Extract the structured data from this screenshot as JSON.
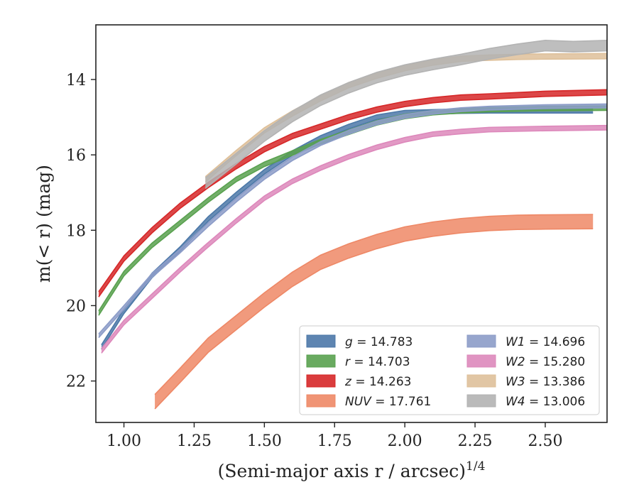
{
  "chart_data": {
    "type": "line",
    "xlabel": "(Semi-major axis r / arcsec)",
    "xlabel_exponent": "1/4",
    "ylabel": "m(< r) (mag)",
    "xlim": [
      0.9,
      2.72
    ],
    "ylim": [
      23.1,
      12.55
    ],
    "y_inverted": true,
    "xticks": [
      1.0,
      1.25,
      1.5,
      1.75,
      2.0,
      2.25,
      2.5
    ],
    "xtick_labels": [
      "1.00",
      "1.25",
      "1.50",
      "1.75",
      "2.00",
      "2.25",
      "2.50"
    ],
    "yticks": [
      14,
      16,
      18,
      20,
      22
    ],
    "ytick_labels": [
      "14",
      "16",
      "18",
      "20",
      "22"
    ],
    "grid": false,
    "legend_position": "lower-right",
    "legend_columns": 2,
    "series": [
      {
        "name": "g",
        "label_value": "14.783",
        "color": "#4c78a8",
        "band_width": 0.12,
        "x": [
          0.92,
          1.0,
          1.1,
          1.2,
          1.3,
          1.4,
          1.5,
          1.6,
          1.7,
          1.8,
          1.9,
          2.0,
          2.1,
          2.2,
          2.3,
          2.5,
          2.67
        ],
        "y": [
          21.1,
          20.15,
          19.2,
          18.5,
          17.7,
          17.05,
          16.45,
          15.95,
          15.55,
          15.25,
          15.0,
          14.88,
          14.86,
          14.84,
          14.83,
          14.83,
          14.83
        ]
      },
      {
        "name": "r",
        "label_value": "14.703",
        "color": "#59a14f",
        "band_width": 0.12,
        "x": [
          0.91,
          1.0,
          1.1,
          1.2,
          1.3,
          1.4,
          1.5,
          1.6,
          1.7,
          1.8,
          1.9,
          2.0,
          2.1,
          2.2,
          2.3,
          2.5,
          2.72
        ],
        "y": [
          20.2,
          19.15,
          18.4,
          17.8,
          17.2,
          16.65,
          16.25,
          15.95,
          15.65,
          15.4,
          15.15,
          14.98,
          14.88,
          14.83,
          14.8,
          14.77,
          14.76
        ]
      },
      {
        "name": "z",
        "label_value": "14.263",
        "color": "#d62728",
        "band_width": 0.14,
        "x": [
          0.91,
          1.0,
          1.1,
          1.2,
          1.3,
          1.4,
          1.5,
          1.6,
          1.7,
          1.8,
          1.9,
          2.0,
          2.1,
          2.2,
          2.3,
          2.5,
          2.72
        ],
        "y": [
          19.7,
          18.75,
          18.0,
          17.35,
          16.8,
          16.3,
          15.85,
          15.5,
          15.25,
          15.0,
          14.8,
          14.65,
          14.55,
          14.48,
          14.45,
          14.38,
          14.34
        ]
      },
      {
        "name": "NUV",
        "label_value": "17.761",
        "color": "#ee8866",
        "band_width": 0.38,
        "x": [
          1.11,
          1.2,
          1.3,
          1.4,
          1.5,
          1.6,
          1.7,
          1.8,
          1.9,
          2.0,
          2.1,
          2.2,
          2.3,
          2.4,
          2.5,
          2.67
        ],
        "y": [
          22.55,
          21.85,
          21.05,
          20.45,
          19.85,
          19.3,
          18.85,
          18.55,
          18.3,
          18.1,
          17.97,
          17.88,
          17.82,
          17.79,
          17.78,
          17.77
        ]
      },
      {
        "name": "W1",
        "label_value": "14.696",
        "color": "#8c9cc8",
        "band_width": 0.1,
        "x": [
          0.91,
          1.0,
          1.1,
          1.2,
          1.3,
          1.4,
          1.5,
          1.6,
          1.7,
          1.8,
          1.9,
          2.0,
          2.1,
          2.2,
          2.3,
          2.5,
          2.72
        ],
        "y": [
          20.8,
          20.05,
          19.2,
          18.55,
          17.85,
          17.2,
          16.6,
          16.1,
          15.7,
          15.4,
          15.15,
          14.98,
          14.87,
          14.8,
          14.76,
          14.72,
          14.7
        ]
      },
      {
        "name": "W2",
        "label_value": "15.280",
        "color": "#dd88bb",
        "band_width": 0.12,
        "x": [
          0.92,
          1.0,
          1.1,
          1.2,
          1.29,
          1.4,
          1.5,
          1.6,
          1.7,
          1.8,
          1.9,
          2.0,
          2.1,
          2.2,
          2.3,
          2.5,
          2.72
        ],
        "y": [
          21.2,
          20.45,
          19.75,
          19.05,
          18.45,
          17.75,
          17.15,
          16.7,
          16.35,
          16.05,
          15.8,
          15.6,
          15.45,
          15.38,
          15.33,
          15.3,
          15.28
        ]
      },
      {
        "name": "W3",
        "label_value": "13.386",
        "color": "#dec09a",
        "band_width": 0.14,
        "x": [
          1.29,
          1.4,
          1.5,
          1.6,
          1.7,
          1.8,
          1.9,
          2.0,
          2.1,
          2.2,
          2.3,
          2.4,
          2.5,
          2.72
        ],
        "y": [
          16.65,
          15.95,
          15.35,
          14.9,
          14.5,
          14.15,
          13.9,
          13.7,
          13.55,
          13.45,
          13.42,
          13.4,
          13.39,
          13.38
        ]
      },
      {
        "name": "W4",
        "label_value": "13.006",
        "color": "#b3b3b3",
        "band_width": 0.28,
        "x": [
          1.29,
          1.4,
          1.5,
          1.6,
          1.7,
          1.8,
          1.9,
          2.0,
          2.1,
          2.2,
          2.3,
          2.4,
          2.5,
          2.6,
          2.72
        ],
        "y": [
          16.75,
          16.1,
          15.5,
          14.98,
          14.55,
          14.22,
          13.95,
          13.75,
          13.6,
          13.47,
          13.32,
          13.2,
          13.1,
          13.13,
          13.1
        ]
      }
    ]
  }
}
